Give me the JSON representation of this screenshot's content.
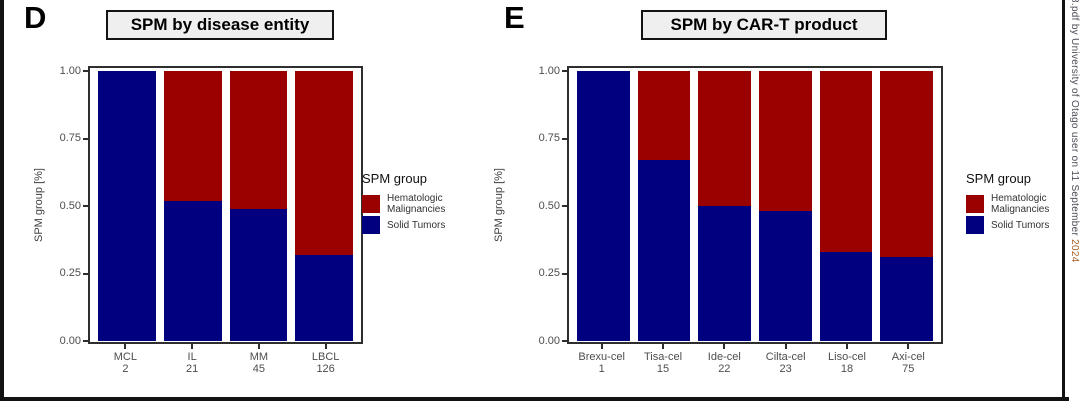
{
  "watermark": {
    "text_main": "8.pdf by University of Otago user on 11 September ",
    "text_year": "2024"
  },
  "legend": {
    "title": "SPM group",
    "entries": [
      {
        "label": "Hematologic\nMalignancies",
        "color": "#9a0200"
      },
      {
        "label": "Solid Tumors",
        "color": "#01007e"
      }
    ]
  },
  "colors": {
    "hematologic": "#9a0200",
    "solid": "#01007e",
    "axis_text": "#4d4d4d",
    "panel_border": "#2e2e2e"
  },
  "chart_data": [
    {
      "type": "bar",
      "stacked": true,
      "letter": "D",
      "title": "SPM by disease entity",
      "ylabel": "SPM group [%]",
      "ylim": [
        0,
        1
      ],
      "yticks": [
        1.0,
        0.75,
        0.5,
        0.25,
        0.0
      ],
      "grid": false,
      "legend_position": "right",
      "categories": [
        "MCL",
        "IL",
        "MM",
        "LBCL"
      ],
      "n": [
        2,
        21,
        45,
        126
      ],
      "series": [
        {
          "name": "Solid Tumors",
          "color": "#01007e",
          "values": [
            1.0,
            0.52,
            0.49,
            0.32
          ]
        },
        {
          "name": "Hematologic Malignancies",
          "color": "#9a0200",
          "values": [
            0.0,
            0.48,
            0.51,
            0.68
          ]
        }
      ]
    },
    {
      "type": "bar",
      "stacked": true,
      "letter": "E",
      "title": "SPM by CAR-T product",
      "ylabel": "SPM group [%]",
      "ylim": [
        0,
        1
      ],
      "yticks": [
        1.0,
        0.75,
        0.5,
        0.25,
        0.0
      ],
      "grid": false,
      "legend_position": "right",
      "categories": [
        "Brexu-cel",
        "Tisa-cel",
        "Ide-cel",
        "Cilta-cel",
        "Liso-cel",
        "Axi-cel"
      ],
      "n": [
        1,
        15,
        22,
        23,
        18,
        75
      ],
      "series": [
        {
          "name": "Solid Tumors",
          "color": "#01007e",
          "values": [
            1.0,
            0.67,
            0.5,
            0.48,
            0.33,
            0.31
          ]
        },
        {
          "name": "Hematologic Malignancies",
          "color": "#9a0200",
          "values": [
            0.0,
            0.33,
            0.5,
            0.52,
            0.67,
            0.69
          ]
        }
      ]
    }
  ]
}
